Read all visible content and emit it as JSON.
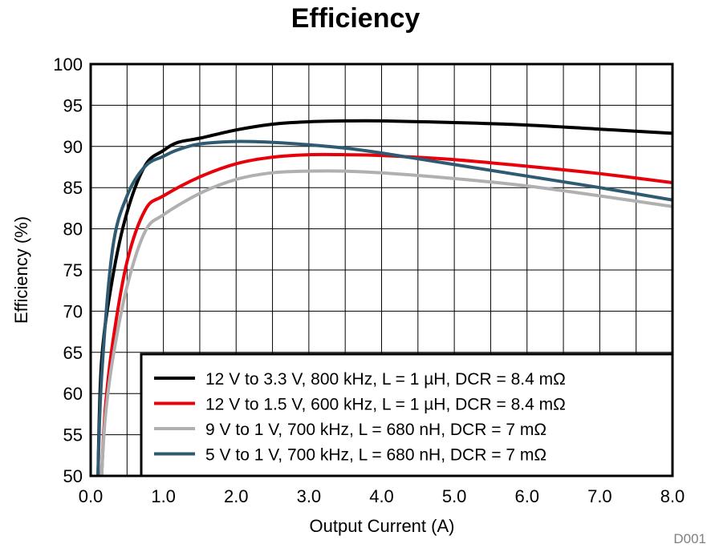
{
  "chart_data": {
    "type": "line",
    "title": "Efficiency",
    "xlabel": "Output Current (A)",
    "ylabel": "Efficiency (%)",
    "xlim": [
      0,
      8
    ],
    "ylim": [
      50,
      100
    ],
    "grid": true,
    "legend_position": "bottom-right",
    "x_ticks": [
      "0.0",
      "1.0",
      "2.0",
      "3.0",
      "4.0",
      "5.0",
      "6.0",
      "7.0",
      "8.0"
    ],
    "y_ticks": [
      "50",
      "55",
      "60",
      "65",
      "70",
      "75",
      "80",
      "85",
      "90",
      "95",
      "100"
    ],
    "figure_code": "D001",
    "series": [
      {
        "name": "12 V to 3.3 V, 800 kHz, L = 1 µH, DCR = 8.4 mΩ",
        "color": "#000000",
        "x": [
          0.1,
          0.15,
          0.3,
          0.5,
          0.75,
          1.0,
          1.2,
          1.5,
          2.0,
          2.5,
          3.0,
          3.5,
          4.0,
          5.0,
          6.0,
          7.0,
          8.0
        ],
        "y": [
          50,
          64,
          74,
          82,
          87.7,
          89.5,
          90.5,
          91,
          92,
          92.7,
          93,
          93.1,
          93.1,
          92.9,
          92.6,
          92.1,
          91.6
        ]
      },
      {
        "name": "12 V to 1.5 V, 600 kHz, L = 1 µH, DCR = 8.4 mΩ",
        "color": "#e8000b",
        "x": [
          0.15,
          0.2,
          0.3,
          0.5,
          0.75,
          1.0,
          1.5,
          2.0,
          2.5,
          3.0,
          3.5,
          4.0,
          5.0,
          6.0,
          7.0,
          8.0
        ],
        "y": [
          50,
          58,
          66,
          76,
          82.3,
          84,
          86.3,
          87.9,
          88.7,
          89,
          89,
          88.9,
          88.4,
          87.6,
          86.7,
          85.6
        ]
      },
      {
        "name": "9 V to 1 V, 700 kHz, L = 680 nH, DCR = 7 mΩ",
        "color": "#b0b0b0",
        "x": [
          0.15,
          0.2,
          0.3,
          0.5,
          0.75,
          1.0,
          1.5,
          2.0,
          2.5,
          3.0,
          3.5,
          4.0,
          5.0,
          6.0,
          7.0,
          8.0
        ],
        "y": [
          50,
          57,
          64,
          73,
          79.7,
          81.7,
          84.3,
          86,
          86.8,
          87,
          87,
          86.8,
          86.1,
          85.2,
          84,
          82.7
        ]
      },
      {
        "name": "5 V to 1 V, 700 kHz, L = 680 nH, DCR = 7 mΩ",
        "color": "#2e5a72",
        "x": [
          0.1,
          0.15,
          0.3,
          0.5,
          0.75,
          1.0,
          1.2,
          1.5,
          2.0,
          2.5,
          3.0,
          3.5,
          4.0,
          5.0,
          6.0,
          7.0,
          8.0
        ],
        "y": [
          50,
          62,
          77.5,
          84,
          87.6,
          88.8,
          89.6,
          90.3,
          90.6,
          90.5,
          90.2,
          89.8,
          89.2,
          87.8,
          86.4,
          85,
          83.5
        ]
      }
    ]
  }
}
